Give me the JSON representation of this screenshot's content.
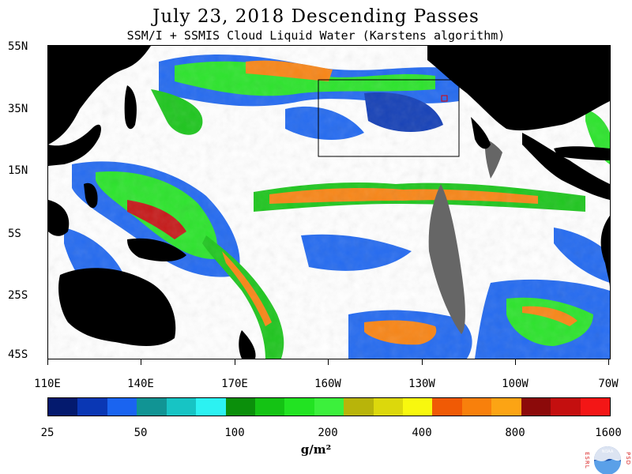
{
  "title": "July 23, 2018  Descending Passes",
  "subtitle": "SSM/I + SSMIS Cloud Liquid Water (Karstens algorithm)",
  "lat_labels": [
    "55N",
    "35N",
    "15N",
    "5S",
    "25S",
    "45S"
  ],
  "lon_labels": [
    "110E",
    "140E",
    "170E",
    "160W",
    "130W",
    "100W",
    "70W"
  ],
  "colorbar": {
    "colors": [
      "#041a6e",
      "#0a37b4",
      "#1a64f0",
      "#119494",
      "#17c4c4",
      "#2cf2f2",
      "#0b8f0b",
      "#14c314",
      "#22e322",
      "#3cf03c",
      "#b8b40a",
      "#dcd80c",
      "#f8f80e",
      "#f05a05",
      "#f8800c",
      "#fca414",
      "#8c0a0a",
      "#c40f0f",
      "#f31616"
    ],
    "labels": [
      "25",
      "50",
      "100",
      "200",
      "400",
      "800",
      "1600"
    ]
  },
  "units": "g/m²",
  "logo": {
    "text_left": "ESRL",
    "text_right": "PSD",
    "center": "NOAA"
  },
  "colors": {
    "land": "#000000",
    "missing": "#666666",
    "ocean_background": "#ffffff"
  }
}
